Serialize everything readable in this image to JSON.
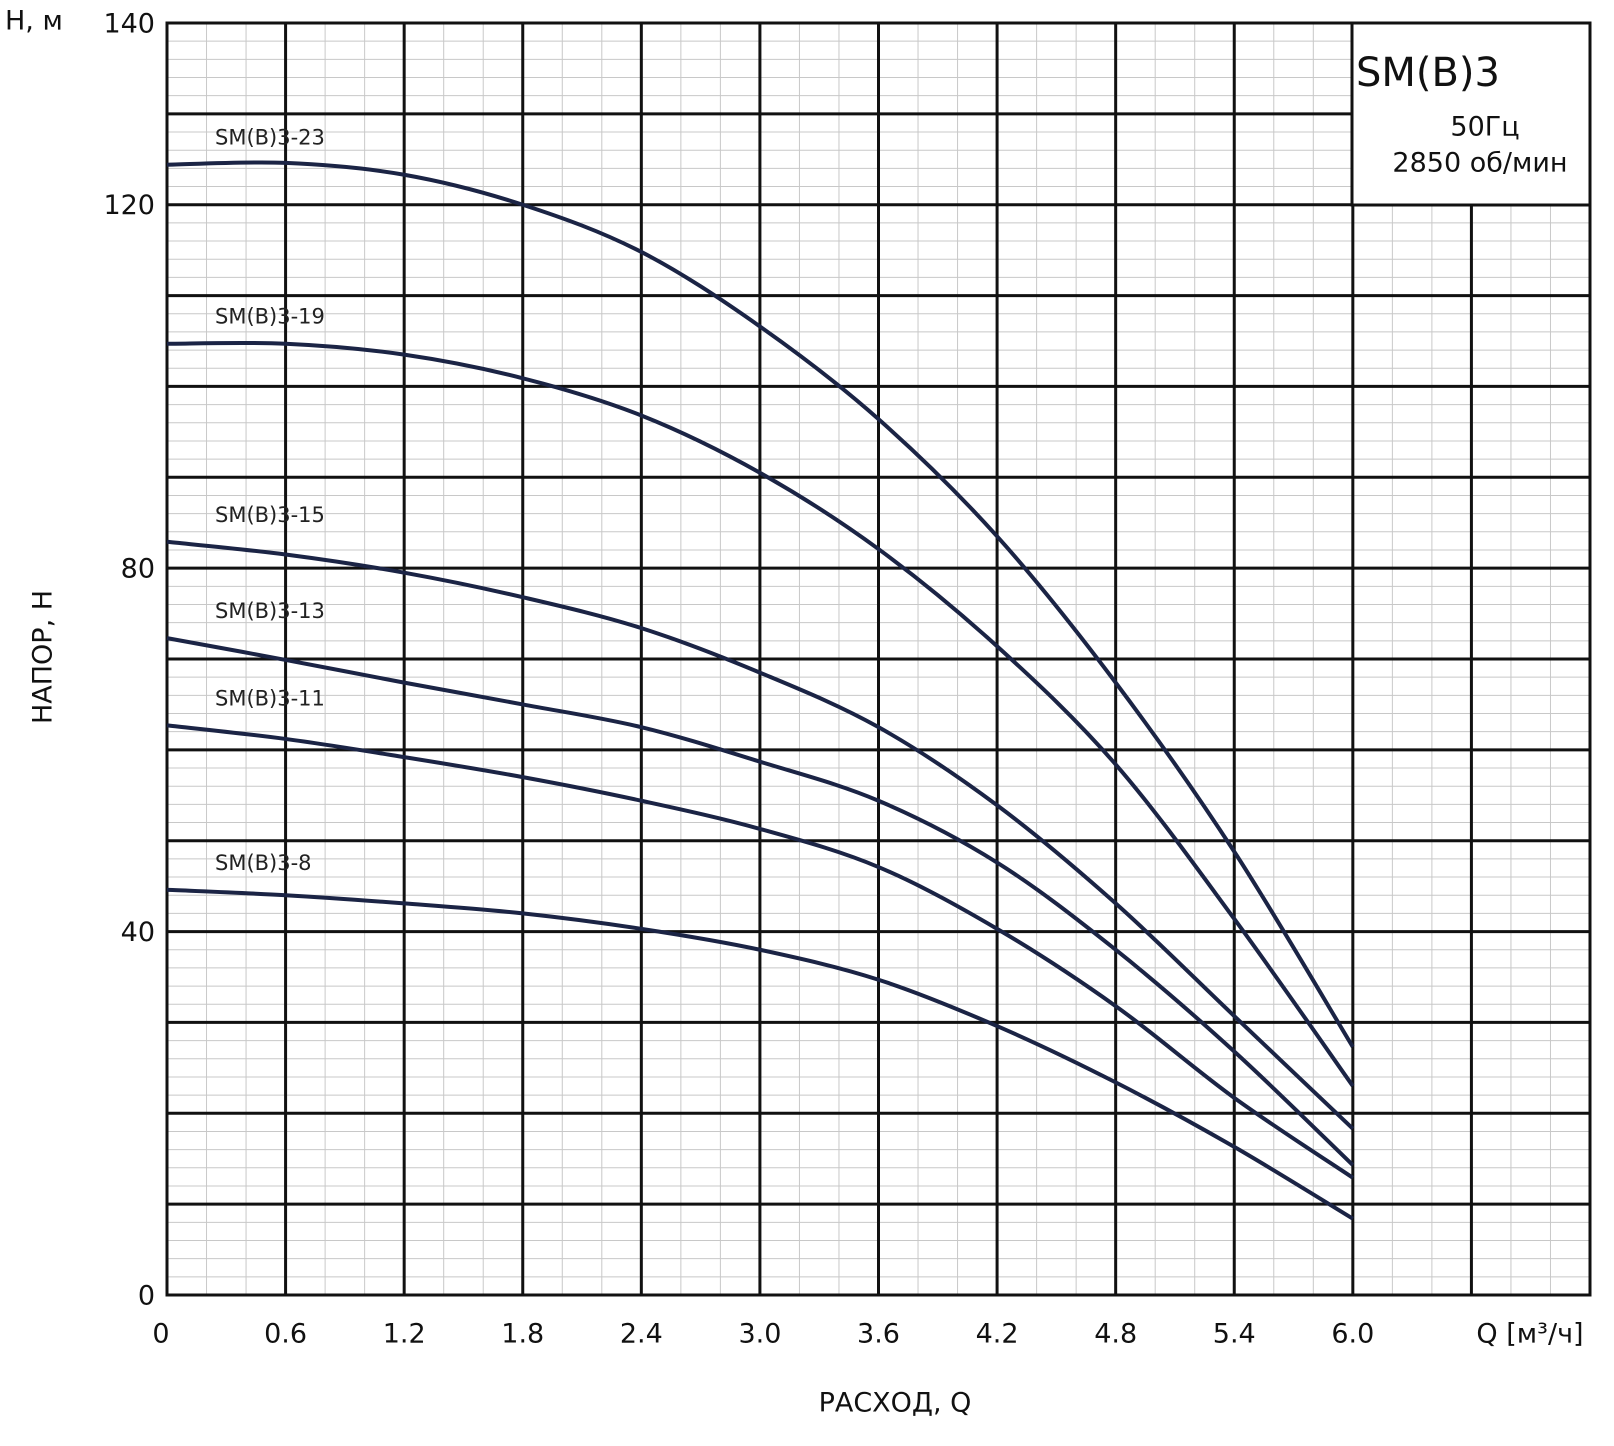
{
  "chart_data": {
    "type": "line",
    "y_axis_unit": "H, м",
    "y_label": "НАПОР, H",
    "x_label": "РАСХОД, Q",
    "x_unit": "Q [м³/ч]",
    "legend_box": {
      "title": "SM(B)3",
      "line1": "50Гц",
      "line2": "2850 об/мин"
    },
    "x": [
      0,
      0.6,
      1.2,
      1.8,
      2.4,
      3.0,
      3.6,
      4.2,
      4.8,
      5.4,
      6.0
    ],
    "xlim": [
      0,
      7.2
    ],
    "ylim": [
      0,
      140
    ],
    "xticks": [
      0,
      0.6,
      1.2,
      1.8,
      2.4,
      {
        "value": 3,
        "label": "3.0"
      },
      3.6,
      4.2,
      4.8,
      5.4,
      {
        "value": 6,
        "label": "6.0"
      }
    ],
    "yticks": [
      0,
      40,
      80,
      120,
      140
    ],
    "grid": true,
    "major_step": {
      "x": 0.6,
      "y": 10
    },
    "minor_step": {
      "x": 0.2,
      "y": 2
    },
    "series": [
      {
        "name": "SM(B)3-23",
        "color": "#1b2445",
        "values": [
          124.4,
          124.6,
          123.3,
          120,
          114.8,
          106.6,
          96.4,
          83.5,
          67.4,
          48.8,
          27.3
        ]
      },
      {
        "name": "SM(B)3-19",
        "color": "#1b2445",
        "values": [
          104.7,
          104.7,
          103.5,
          100.9,
          96.8,
          90.5,
          82.1,
          71.4,
          58.4,
          41.4,
          23
        ]
      },
      {
        "name": "SM(B)3-15",
        "color": "#1b2445",
        "values": [
          82.9,
          81.5,
          79.5,
          76.8,
          73.4,
          68.5,
          62.5,
          53.9,
          43.1,
          30.7,
          18.3
        ]
      },
      {
        "name": "SM(B)3-13",
        "color": "#1b2445",
        "values": [
          72.3,
          69.9,
          67.4,
          65,
          62.5,
          58.7,
          54.4,
          47.6,
          38,
          26.8,
          14.3
        ]
      },
      {
        "name": "SM(B)3-11",
        "color": "#1b2445",
        "values": [
          62.7,
          61.2,
          59.2,
          57,
          54.4,
          51.3,
          47.1,
          40.3,
          31.8,
          21.7,
          12.9
        ]
      },
      {
        "name": "SM(B)3-8",
        "color": "#1b2445",
        "values": [
          44.6,
          44,
          43.1,
          42,
          40.3,
          38,
          34.7,
          29.6,
          23.4,
          16.3,
          8.4
        ]
      }
    ]
  }
}
